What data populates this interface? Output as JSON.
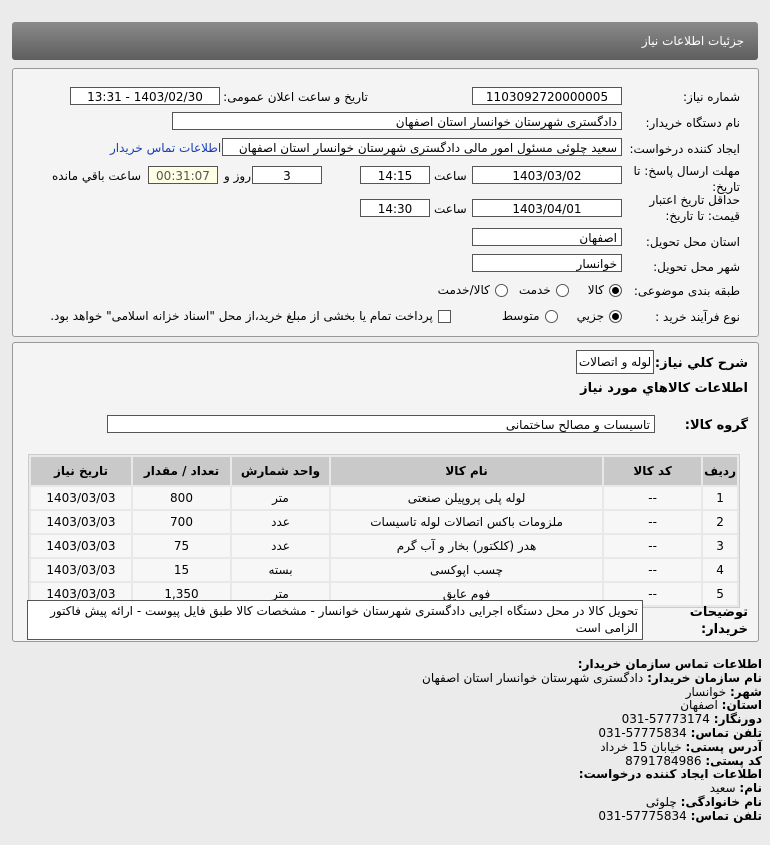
{
  "header": {
    "title": "جزئیات اطلاعات نیاز"
  },
  "form": {
    "need_number_label": "شماره نیاز:",
    "need_number": "1103092720000005",
    "announce_label": "تاریخ و ساعت اعلان عمومی:",
    "announce_value": "1403/02/30 - 13:31",
    "buyer_label": "نام دستگاه خریدار:",
    "buyer": "دادگستری شهرستان خوانسار استان اصفهان",
    "creator_label": "ایجاد کننده درخواست:",
    "creator": "سعید چلوئی مسئول امور مالی دادگستری شهرستان خوانسار استان اصفهان",
    "contact_link": "اطلاعات تماس خریدار",
    "deadline_label": "مهلت ارسال پاسخ: تا تاریخ:",
    "deadline_date": "1403/03/02",
    "time_label": "ساعت",
    "deadline_time": "14:15",
    "days": "3",
    "days_label": "روز و",
    "remaining": "00:31:07",
    "remaining_label": "ساعت باقي مانده",
    "validity_label": "حداقل تاریخ اعتبار قیمت: تا تاریخ:",
    "validity_date": "1403/04/01",
    "validity_time": "14:30",
    "province_label": "استان محل تحویل:",
    "province": "اصفهان",
    "city_label": "شهر محل تحویل:",
    "city": "خوانسار",
    "category_label": "طبقه بندی موضوعی:",
    "category_options": [
      "کالا",
      "خدمت",
      "کالا/خدمت"
    ],
    "category_selected": "کالا",
    "process_label": "نوع فرآیند خرید :",
    "process_options": [
      "جزیي",
      "متوسط"
    ],
    "process_selected": "جزیي",
    "payment_note": "پرداخت تمام یا بخشی از مبلغ خرید،از محل \"اسناد خزانه اسلامی\" خواهد بود."
  },
  "summary": {
    "label": "شرح کلي نیاز:",
    "value": "لوله و اتصالات",
    "goods_title": "اطلاعات کالاهاي مورد نیاز",
    "group_label": "گروه کالا:",
    "group_value": "تاسیسات و مصالح ساختمانی"
  },
  "table": {
    "headers": [
      "ردیف",
      "کد کالا",
      "نام کالا",
      "واحد شمارش",
      "تعداد / مقدار",
      "تاریخ نیاز"
    ],
    "rows": [
      [
        "1",
        "--",
        "لوله پلی پروپیلن صنعتی",
        "متر",
        "800",
        "1403/03/03"
      ],
      [
        "2",
        "--",
        "ملزومات باکس اتصالات لوله تاسیسات",
        "عدد",
        "700",
        "1403/03/03"
      ],
      [
        "3",
        "--",
        "هدر (کلکتور) بخار و آب گرم",
        "عدد",
        "75",
        "1403/03/03"
      ],
      [
        "4",
        "--",
        "چسب اپوکسی",
        "بسته",
        "15",
        "1403/03/03"
      ],
      [
        "5",
        "--",
        "فوم عایق",
        "متر",
        "1,350",
        "1403/03/03"
      ]
    ]
  },
  "notes": {
    "label": "توضیحات خریدار:",
    "value": "تحویل کالا در محل دستگاه اجرایی دادگستری شهرستان خوانسار - مشخصات کالا طبق فایل پیوست - ارائه پیش فاکتور الزامی است"
  },
  "contact": {
    "title": "اطلاعات تماس سازمان خریدار:",
    "org_label": "نام سازمان خریدار:",
    "org": "دادگستری شهرستان خوانسار استان اصفهان",
    "city_label": "شهر:",
    "city": "خوانسار",
    "province_label": "استان:",
    "province": "اصفهان",
    "fax_label": "دورنگار:",
    "fax": "031-57773174",
    "phone_label": "تلفن تماس:",
    "phone": "031-57775834",
    "address_label": "آدرس پستی:",
    "address": "خیابان 15 خرداد",
    "postal_label": "کد پستی:",
    "postal": "8791784986",
    "creator_title": "اطلاعات ایجاد کننده درخواست:",
    "name_label": "نام:",
    "name": "سعید",
    "family_label": "نام خانوادگی:",
    "family": "چلوئی",
    "creator_phone_label": "تلفن تماس:",
    "creator_phone": "031-57775834"
  }
}
